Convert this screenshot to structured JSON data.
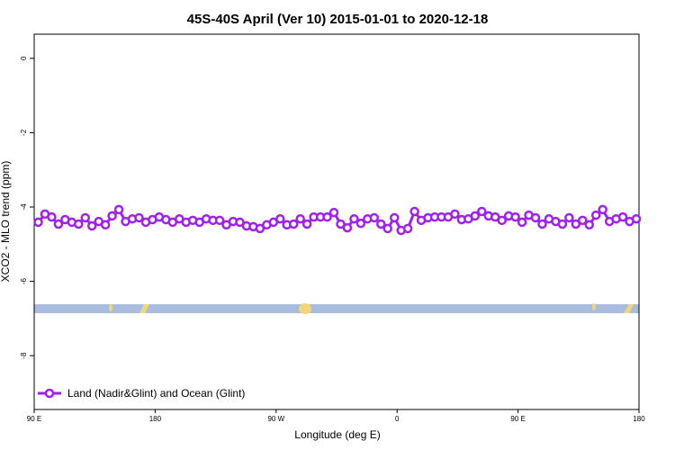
{
  "chart_data": {
    "type": "line",
    "title": "45S-40S April (Ver 10)   2015-01-01 to 2020-12-18",
    "x_label": "Longitude (deg E)",
    "y_label": "XCO2 - MLO trend (ppm)",
    "x": [
      93,
      98,
      103,
      108,
      113,
      118,
      123,
      128,
      133,
      138,
      143,
      148,
      153,
      158,
      163,
      168,
      173,
      178,
      183,
      188,
      193,
      198,
      203,
      208,
      213,
      218,
      223,
      228,
      233,
      238,
      243,
      248,
      253,
      258,
      263,
      268,
      273,
      278,
      283,
      288,
      293,
      298,
      303,
      308,
      313,
      318,
      323,
      328,
      333,
      338,
      343,
      348,
      353,
      358,
      363,
      368,
      373,
      378,
      383,
      388,
      393,
      398,
      403,
      408,
      413,
      418,
      423,
      428,
      433,
      438,
      443,
      448,
      453,
      458,
      463,
      468,
      473,
      478,
      483,
      488,
      493,
      498,
      503,
      508,
      513,
      518,
      523,
      528,
      533,
      538
    ],
    "series": [
      {
        "name": "Land (Nadir&Glint) and Ocean (Glint)",
        "color": "#a020f0",
        "values": [
          -4.41,
          -4.19,
          -4.27,
          -4.46,
          -4.34,
          -4.41,
          -4.46,
          -4.29,
          -4.51,
          -4.39,
          -4.48,
          -4.24,
          -4.07,
          -4.39,
          -4.32,
          -4.29,
          -4.41,
          -4.34,
          -4.27,
          -4.34,
          -4.41,
          -4.32,
          -4.41,
          -4.36,
          -4.41,
          -4.32,
          -4.36,
          -4.36,
          -4.48,
          -4.39,
          -4.41,
          -4.51,
          -4.53,
          -4.58,
          -4.48,
          -4.41,
          -4.32,
          -4.48,
          -4.46,
          -4.32,
          -4.46,
          -4.27,
          -4.27,
          -4.27,
          -4.15,
          -4.46,
          -4.56,
          -4.32,
          -4.44,
          -4.32,
          -4.29,
          -4.46,
          -4.58,
          -4.29,
          -4.63,
          -4.58,
          -4.12,
          -4.36,
          -4.29,
          -4.27,
          -4.27,
          -4.27,
          -4.19,
          -4.34,
          -4.32,
          -4.24,
          -4.12,
          -4.24,
          -4.27,
          -4.36,
          -4.24,
          -4.27,
          -4.41,
          -4.22,
          -4.29,
          -4.46,
          -4.32,
          -4.39,
          -4.46,
          -4.29,
          -4.46,
          -4.36,
          -4.48,
          -4.22,
          -4.07,
          -4.39,
          -4.32,
          -4.27,
          -4.39,
          -4.32
        ]
      }
    ],
    "xlim": [
      90,
      540
    ],
    "xticks": [
      {
        "value": 90,
        "label": "90 E"
      },
      {
        "value": 180,
        "label": "180"
      },
      {
        "value": 270,
        "label": "90 W"
      },
      {
        "value": 360,
        "label": "0"
      },
      {
        "value": 450,
        "label": "90 E"
      },
      {
        "value": 540,
        "label": "180"
      }
    ],
    "ylim": [
      -9.45,
      0.65
    ],
    "yticks": [
      0,
      -2,
      -4,
      -6,
      -8
    ],
    "legend": "bottom-left"
  }
}
